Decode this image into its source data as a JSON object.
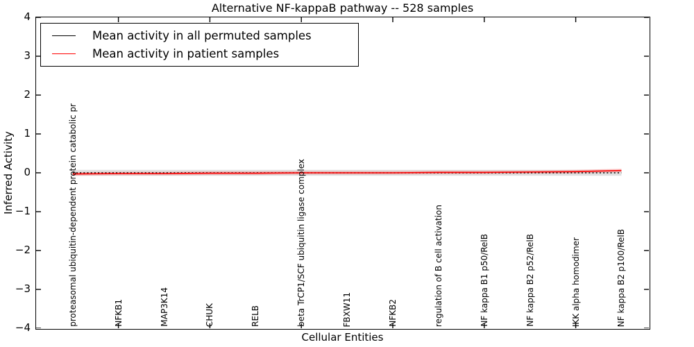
{
  "figure": {
    "title": "Alternative NF-kappaB pathway -- 528 samples",
    "xlabel": "Cellular Entities",
    "ylabel": "Inferred Activity"
  },
  "chart_data": {
    "type": "line",
    "title": "Alternative NF-kappaB pathway -- 528 samples",
    "xlabel": "Cellular Entities",
    "ylabel": "Inferred Activity",
    "xlim": [
      0.2,
      13.6
    ],
    "ylim": [
      -4,
      4
    ],
    "ytick_values": [
      4,
      3,
      2,
      1,
      0,
      -1,
      -2,
      -3,
      -4
    ],
    "ytick_labels": [
      "4",
      "3",
      "2",
      "1",
      "0",
      "−1",
      "−2",
      "−3",
      "−4"
    ],
    "axis_xtick_values": [
      2,
      4,
      6,
      8,
      10,
      12
    ],
    "x": [
      1,
      2,
      3,
      4,
      5,
      6,
      7,
      8,
      9,
      10,
      11,
      12,
      13
    ],
    "categories": [
      "proteasomal ubiquitin-dependent protein catabolic pr",
      "NFKB1",
      "MAP3K14",
      "CHUK",
      "RELB",
      "beta TrCP1/SCF ubiquitin ligase complex",
      "FBXW11",
      "NFKB2",
      "regulation of B cell activation",
      "NF kappa B1 p50/RelB",
      "NF kappa B2 p52/RelB",
      "IKK alpha homodimer",
      "NF kappa B2 p100/RelB"
    ],
    "series": [
      {
        "name": "Mean activity in all permuted samples",
        "color": "#000000",
        "linestyle": "dotted",
        "values": [
          0,
          0,
          0,
          0,
          0,
          0,
          0,
          0,
          0,
          0,
          0,
          0,
          0
        ],
        "band_halfwidth": 0.075,
        "band_color": "rgba(0,0,0,0.12)"
      },
      {
        "name": "Mean activity in patient samples",
        "color": "#ff0000",
        "linestyle": "solid",
        "values": [
          -0.03,
          -0.02,
          -0.02,
          -0.01,
          -0.01,
          0,
          0,
          0,
          0.01,
          0.01,
          0.02,
          0.03,
          0.06
        ],
        "band_halfwidth": 0.045,
        "band_color": "rgba(255,0,0,0.18)"
      }
    ],
    "legend_position": "upper left",
    "grid": false,
    "background": "#ffffff",
    "frame_color": "#000000"
  }
}
